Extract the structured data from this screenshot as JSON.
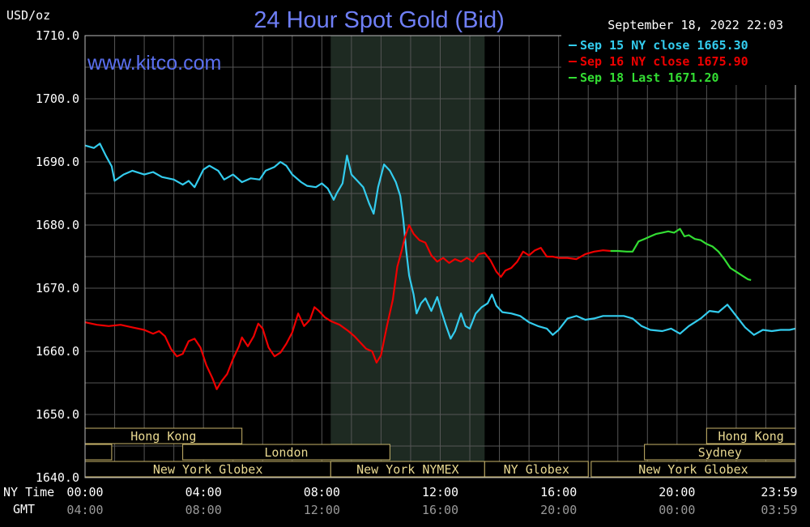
{
  "chart_data": {
    "type": "line",
    "title": "24 Hour Spot Gold (Bid)",
    "watermark": "www.kitco.com",
    "timestamp": "September 18, 2022 22:03",
    "ylabel": "USD/oz",
    "ylim": [
      1640,
      1710
    ],
    "y_ticks": [
      "1710.0",
      "1700.0",
      "1690.0",
      "1680.0",
      "1670.0",
      "1660.0",
      "1650.0",
      "1640.0"
    ],
    "xlim_hours": [
      0,
      24
    ],
    "x_row1_label": "NY Time",
    "x_row2_label": "GMT",
    "x_ticks": [
      {
        "hour": 0,
        "ny": "00:00",
        "gmt": "04:00"
      },
      {
        "hour": 4,
        "ny": "04:00",
        "gmt": "08:00"
      },
      {
        "hour": 8,
        "ny": "08:00",
        "gmt": "12:00"
      },
      {
        "hour": 12,
        "ny": "12:00",
        "gmt": "16:00"
      },
      {
        "hour": 16,
        "ny": "16:00",
        "gmt": "20:00"
      },
      {
        "hour": 20,
        "ny": "20:00",
        "gmt": "00:00"
      },
      {
        "hour": 24,
        "ny": "23:59",
        "gmt": "03:59"
      }
    ],
    "grid": true,
    "legend_position": "top-right",
    "shaded_hours": [
      8.3,
      13.5
    ],
    "series": [
      {
        "name": "Sep 15 NY close 1665.30",
        "color": "#33ccee",
        "points": [
          [
            0,
            1692.6
          ],
          [
            0.3,
            1692.2
          ],
          [
            0.5,
            1692.9
          ],
          [
            0.7,
            1691.0
          ],
          [
            0.9,
            1689.3
          ],
          [
            1.0,
            1687.0
          ],
          [
            1.3,
            1688.0
          ],
          [
            1.6,
            1688.6
          ],
          [
            2.0,
            1688.0
          ],
          [
            2.3,
            1688.4
          ],
          [
            2.6,
            1687.6
          ],
          [
            3.0,
            1687.2
          ],
          [
            3.3,
            1686.4
          ],
          [
            3.5,
            1687.0
          ],
          [
            3.7,
            1686.0
          ],
          [
            4.0,
            1688.8
          ],
          [
            4.2,
            1689.4
          ],
          [
            4.5,
            1688.6
          ],
          [
            4.7,
            1687.2
          ],
          [
            5.0,
            1688.0
          ],
          [
            5.3,
            1686.8
          ],
          [
            5.6,
            1687.4
          ],
          [
            5.9,
            1687.2
          ],
          [
            6.1,
            1688.6
          ],
          [
            6.4,
            1689.2
          ],
          [
            6.6,
            1690.0
          ],
          [
            6.8,
            1689.4
          ],
          [
            7.0,
            1688.0
          ],
          [
            7.3,
            1686.8
          ],
          [
            7.5,
            1686.2
          ],
          [
            7.8,
            1686.0
          ],
          [
            8.0,
            1686.6
          ],
          [
            8.2,
            1685.8
          ],
          [
            8.4,
            1684.0
          ],
          [
            8.5,
            1685.0
          ],
          [
            8.7,
            1686.6
          ],
          [
            8.85,
            1691.0
          ],
          [
            9.0,
            1688.0
          ],
          [
            9.2,
            1687.0
          ],
          [
            9.4,
            1686.0
          ],
          [
            9.6,
            1683.4
          ],
          [
            9.75,
            1681.8
          ],
          [
            9.9,
            1686.0
          ],
          [
            10.1,
            1689.6
          ],
          [
            10.3,
            1688.6
          ],
          [
            10.5,
            1686.8
          ],
          [
            10.65,
            1684.6
          ],
          [
            10.75,
            1681.0
          ],
          [
            10.85,
            1676.0
          ],
          [
            10.95,
            1672.0
          ],
          [
            11.1,
            1669.0
          ],
          [
            11.2,
            1666.0
          ],
          [
            11.35,
            1667.6
          ],
          [
            11.5,
            1668.4
          ],
          [
            11.7,
            1666.4
          ],
          [
            11.9,
            1668.6
          ],
          [
            12.05,
            1666.2
          ],
          [
            12.2,
            1664.0
          ],
          [
            12.35,
            1662.0
          ],
          [
            12.5,
            1663.2
          ],
          [
            12.7,
            1666.0
          ],
          [
            12.85,
            1664.0
          ],
          [
            13.0,
            1663.6
          ],
          [
            13.2,
            1666.0
          ],
          [
            13.4,
            1667.0
          ],
          [
            13.6,
            1667.6
          ],
          [
            13.75,
            1669.0
          ],
          [
            13.9,
            1667.2
          ],
          [
            14.1,
            1666.2
          ],
          [
            14.4,
            1666.0
          ],
          [
            14.7,
            1665.6
          ],
          [
            15.0,
            1664.6
          ],
          [
            15.3,
            1664.0
          ],
          [
            15.6,
            1663.6
          ],
          [
            15.8,
            1662.6
          ],
          [
            16.0,
            1663.4
          ],
          [
            16.3,
            1665.2
          ],
          [
            16.6,
            1665.6
          ],
          [
            16.9,
            1665.0
          ],
          [
            17.2,
            1665.2
          ],
          [
            17.5,
            1665.6
          ],
          [
            17.8,
            1665.6
          ],
          [
            18.2,
            1665.6
          ],
          [
            18.5,
            1665.2
          ],
          [
            18.8,
            1664.0
          ],
          [
            19.1,
            1663.4
          ],
          [
            19.5,
            1663.2
          ],
          [
            19.8,
            1663.6
          ],
          [
            20.1,
            1662.8
          ],
          [
            20.4,
            1664.0
          ],
          [
            20.8,
            1665.2
          ],
          [
            21.1,
            1666.4
          ],
          [
            21.4,
            1666.2
          ],
          [
            21.7,
            1667.4
          ],
          [
            22.0,
            1665.6
          ],
          [
            22.3,
            1663.8
          ],
          [
            22.6,
            1662.6
          ],
          [
            22.9,
            1663.4
          ],
          [
            23.2,
            1663.2
          ],
          [
            23.5,
            1663.4
          ],
          [
            23.8,
            1663.4
          ],
          [
            24.0,
            1663.6
          ]
        ]
      },
      {
        "name": "Sep 16 NY close 1675.90",
        "color": "#ee0000",
        "points": [
          [
            0,
            1664.6
          ],
          [
            0.4,
            1664.2
          ],
          [
            0.8,
            1664.0
          ],
          [
            1.2,
            1664.2
          ],
          [
            1.6,
            1663.8
          ],
          [
            2.0,
            1663.4
          ],
          [
            2.3,
            1662.8
          ],
          [
            2.5,
            1663.2
          ],
          [
            2.7,
            1662.4
          ],
          [
            2.9,
            1660.4
          ],
          [
            3.1,
            1659.2
          ],
          [
            3.3,
            1659.6
          ],
          [
            3.5,
            1661.6
          ],
          [
            3.7,
            1662.0
          ],
          [
            3.9,
            1660.6
          ],
          [
            4.1,
            1657.8
          ],
          [
            4.3,
            1655.8
          ],
          [
            4.45,
            1654.0
          ],
          [
            4.6,
            1655.2
          ],
          [
            4.8,
            1656.4
          ],
          [
            5.0,
            1658.8
          ],
          [
            5.2,
            1660.8
          ],
          [
            5.3,
            1662.2
          ],
          [
            5.5,
            1660.8
          ],
          [
            5.7,
            1662.4
          ],
          [
            5.85,
            1664.4
          ],
          [
            6.0,
            1663.6
          ],
          [
            6.2,
            1660.6
          ],
          [
            6.4,
            1659.2
          ],
          [
            6.6,
            1659.8
          ],
          [
            6.8,
            1661.2
          ],
          [
            7.0,
            1663.0
          ],
          [
            7.2,
            1666.0
          ],
          [
            7.4,
            1664.0
          ],
          [
            7.6,
            1665.0
          ],
          [
            7.75,
            1667.0
          ],
          [
            7.9,
            1666.4
          ],
          [
            8.1,
            1665.4
          ],
          [
            8.3,
            1664.8
          ],
          [
            8.6,
            1664.2
          ],
          [
            8.9,
            1663.2
          ],
          [
            9.1,
            1662.4
          ],
          [
            9.3,
            1661.4
          ],
          [
            9.5,
            1660.4
          ],
          [
            9.7,
            1660.0
          ],
          [
            9.85,
            1658.2
          ],
          [
            10.0,
            1659.4
          ],
          [
            10.2,
            1664.0
          ],
          [
            10.4,
            1668.2
          ],
          [
            10.55,
            1673.4
          ],
          [
            10.7,
            1676.0
          ],
          [
            10.8,
            1678.0
          ],
          [
            10.95,
            1680.0
          ],
          [
            11.1,
            1678.6
          ],
          [
            11.3,
            1677.6
          ],
          [
            11.5,
            1677.2
          ],
          [
            11.7,
            1675.2
          ],
          [
            11.9,
            1674.2
          ],
          [
            12.1,
            1674.8
          ],
          [
            12.3,
            1674.0
          ],
          [
            12.5,
            1674.6
          ],
          [
            12.7,
            1674.2
          ],
          [
            12.9,
            1674.8
          ],
          [
            13.1,
            1674.2
          ],
          [
            13.3,
            1675.4
          ],
          [
            13.5,
            1675.6
          ],
          [
            13.7,
            1674.4
          ],
          [
            13.9,
            1672.6
          ],
          [
            14.05,
            1671.8
          ],
          [
            14.2,
            1672.8
          ],
          [
            14.4,
            1673.2
          ],
          [
            14.6,
            1674.2
          ],
          [
            14.8,
            1675.8
          ],
          [
            15.0,
            1675.2
          ],
          [
            15.2,
            1676.0
          ],
          [
            15.4,
            1676.4
          ],
          [
            15.6,
            1675.0
          ],
          [
            15.8,
            1675.0
          ],
          [
            16.0,
            1674.8
          ],
          [
            16.3,
            1674.8
          ],
          [
            16.6,
            1674.6
          ],
          [
            16.9,
            1675.4
          ],
          [
            17.2,
            1675.8
          ],
          [
            17.5,
            1676.0
          ],
          [
            17.75,
            1675.9
          ]
        ]
      },
      {
        "name": "Sep 18 Last 1671.20",
        "color": "#33dd33",
        "points": [
          [
            17.75,
            1675.9
          ],
          [
            18.0,
            1675.9
          ],
          [
            18.3,
            1675.8
          ],
          [
            18.5,
            1675.8
          ],
          [
            18.7,
            1677.4
          ],
          [
            18.9,
            1677.8
          ],
          [
            19.1,
            1678.2
          ],
          [
            19.3,
            1678.6
          ],
          [
            19.5,
            1678.8
          ],
          [
            19.7,
            1679.0
          ],
          [
            19.9,
            1678.8
          ],
          [
            20.1,
            1679.4
          ],
          [
            20.25,
            1678.2
          ],
          [
            20.4,
            1678.4
          ],
          [
            20.6,
            1677.8
          ],
          [
            20.8,
            1677.6
          ],
          [
            21.0,
            1677.0
          ],
          [
            21.2,
            1676.6
          ],
          [
            21.4,
            1675.8
          ],
          [
            21.6,
            1674.6
          ],
          [
            21.8,
            1673.2
          ],
          [
            22.0,
            1672.6
          ],
          [
            22.2,
            1672.0
          ],
          [
            22.4,
            1671.4
          ],
          [
            22.5,
            1671.3
          ]
        ]
      }
    ]
  },
  "sessions": [
    {
      "label": "Hong Kong",
      "row": 0,
      "start": 0,
      "end": 5.3
    },
    {
      "label": "Hong Kong",
      "row": 0,
      "start": 21.0,
      "end": 24
    },
    {
      "label": "",
      "row": 1,
      "start": 0,
      "end": 0.9
    },
    {
      "label": "London",
      "row": 1,
      "start": 3.3,
      "end": 10.3
    },
    {
      "label": "Sydney",
      "row": 1,
      "start": 18.9,
      "end": 24
    },
    {
      "label": "New York Globex",
      "row": 2,
      "start": 0,
      "end": 8.3
    },
    {
      "label": "New York NYMEX",
      "row": 2,
      "start": 8.3,
      "end": 13.5
    },
    {
      "label": "NY Globex",
      "row": 2,
      "start": 13.5,
      "end": 17.0
    },
    {
      "label": "New York Globex",
      "row": 2,
      "start": 17.1,
      "end": 24
    }
  ]
}
